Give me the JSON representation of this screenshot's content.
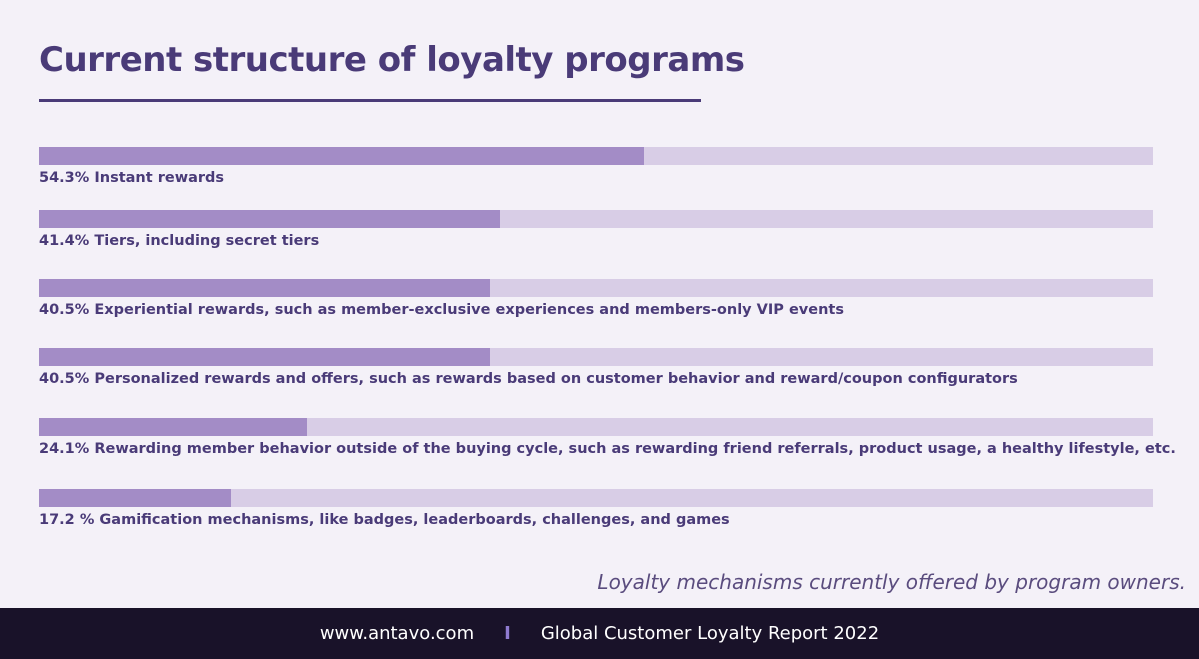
{
  "header": {
    "title": "Current structure of loyalty programs"
  },
  "chart_data": {
    "type": "bar",
    "orientation": "horizontal",
    "xlim": [
      0,
      100
    ],
    "unit": "%",
    "bars": [
      {
        "value": 54.3,
        "label": "54.3% Instant rewards"
      },
      {
        "value": 41.4,
        "label": "41.4% Tiers, including secret tiers"
      },
      {
        "value": 40.5,
        "label": "40.5% Experiential rewards, such as member-exclusive experiences and members-only VIP events"
      },
      {
        "value": 40.5,
        "label": "40.5% Personalized rewards and offers, such as rewards based on customer behavior and reward/coupon configurators"
      },
      {
        "value": 24.1,
        "label": "24.1% Rewarding member behavior outside of the buying cycle, such as rewarding friend referrals, product usage, a healthy lifestyle, etc."
      },
      {
        "value": 17.2,
        "label": "17.2 % Gamification mechanisms, like badges, leaderboards, challenges, and games"
      }
    ],
    "colors": {
      "fill": "#a38cc6",
      "track": "#d8cde6"
    }
  },
  "caption": "Loyalty mechanisms currently offered by program owners.",
  "footer": {
    "website": "www.antavo.com",
    "separator": "I",
    "report": "Global Customer Loyalty Report 2022"
  }
}
